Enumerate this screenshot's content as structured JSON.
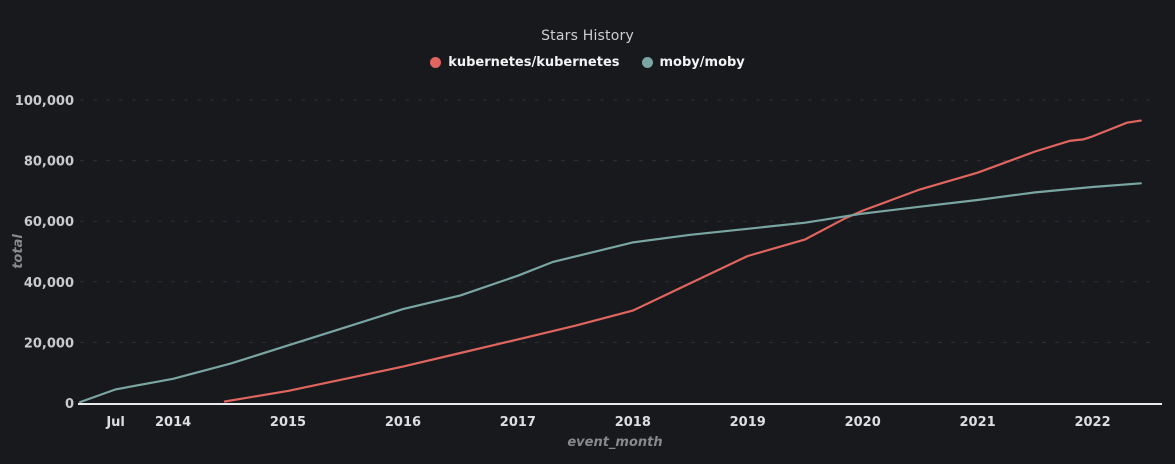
{
  "chart_data": {
    "type": "line",
    "title": "Stars History",
    "xlabel": "event_month",
    "ylabel": "total",
    "xlim": [
      2013.19,
      2022.5
    ],
    "ylim": [
      0,
      100000
    ],
    "grid": "horizontal-dashed-only",
    "legend_position": "top-center",
    "background_color": "#17191d",
    "gridline_color": "#2d3036",
    "axisline_color": "#e9eaec",
    "yticks": [
      {
        "value": 0,
        "label": "0"
      },
      {
        "value": 20000,
        "label": "20,000"
      },
      {
        "value": 40000,
        "label": "40,000"
      },
      {
        "value": 60000,
        "label": "60,000"
      },
      {
        "value": 80000,
        "label": "80,000"
      },
      {
        "value": 100000,
        "label": "100,000"
      }
    ],
    "xticks": [
      {
        "value": 2013.5,
        "label": "Jul"
      },
      {
        "value": 2014,
        "label": "2014"
      },
      {
        "value": 2015,
        "label": "2015"
      },
      {
        "value": 2016,
        "label": "2016"
      },
      {
        "value": 2017,
        "label": "2017"
      },
      {
        "value": 2018,
        "label": "2018"
      },
      {
        "value": 2019,
        "label": "2019"
      },
      {
        "value": 2020,
        "label": "2020"
      },
      {
        "value": 2021,
        "label": "2021"
      },
      {
        "value": 2022,
        "label": "2022"
      }
    ],
    "series": [
      {
        "name": "kubernetes/kubernetes",
        "color": "#e0655f",
        "points": [
          [
            2014.45,
            500
          ],
          [
            2015.0,
            4000
          ],
          [
            2015.5,
            8000
          ],
          [
            2016.0,
            12000
          ],
          [
            2016.5,
            16500
          ],
          [
            2017.0,
            21000
          ],
          [
            2017.5,
            25500
          ],
          [
            2018.0,
            30500
          ],
          [
            2018.5,
            39500
          ],
          [
            2019.0,
            48500
          ],
          [
            2019.5,
            54000
          ],
          [
            2019.85,
            61000
          ],
          [
            2020.0,
            63500
          ],
          [
            2020.5,
            70500
          ],
          [
            2021.0,
            76000
          ],
          [
            2021.5,
            83000
          ],
          [
            2021.8,
            86500
          ],
          [
            2021.92,
            87000
          ],
          [
            2022.0,
            88000
          ],
          [
            2022.3,
            92500
          ],
          [
            2022.42,
            93200
          ]
        ]
      },
      {
        "name": "moby/moby",
        "color": "#7aa5a2",
        "points": [
          [
            2013.19,
            300
          ],
          [
            2013.5,
            4500
          ],
          [
            2014.0,
            8000
          ],
          [
            2014.5,
            13000
          ],
          [
            2015.0,
            19000
          ],
          [
            2015.5,
            25000
          ],
          [
            2016.0,
            31000
          ],
          [
            2016.5,
            35500
          ],
          [
            2017.0,
            42000
          ],
          [
            2017.3,
            46500
          ],
          [
            2018.0,
            53000
          ],
          [
            2018.5,
            55500
          ],
          [
            2019.0,
            57500
          ],
          [
            2019.5,
            59500
          ],
          [
            2020.0,
            62500
          ],
          [
            2020.5,
            64800
          ],
          [
            2021.0,
            67000
          ],
          [
            2021.5,
            69500
          ],
          [
            2022.0,
            71300
          ],
          [
            2022.42,
            72500
          ]
        ]
      }
    ]
  }
}
